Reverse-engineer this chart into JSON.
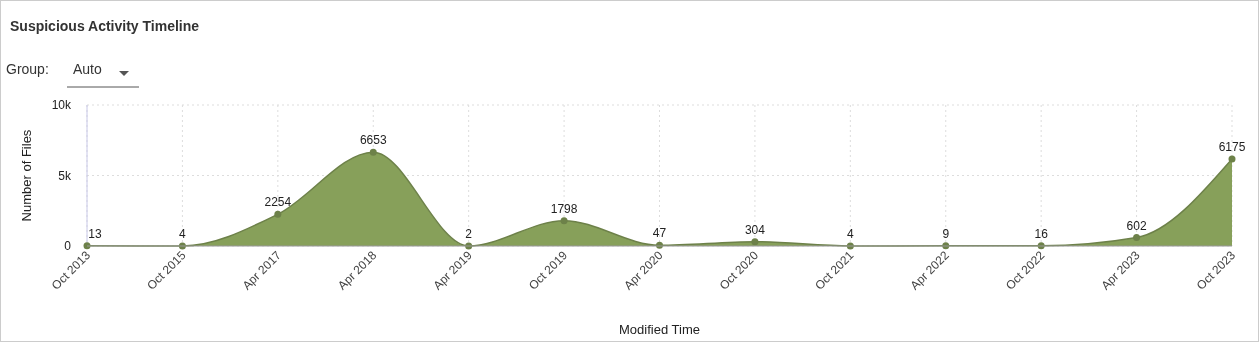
{
  "chart_data": {
    "type": "area",
    "title": "Suspicious Activity Timeline",
    "xlabel": "Modified Time",
    "ylabel": "Number of Files",
    "annotations": [
      "Group:",
      "Auto"
    ],
    "categories": [
      "Oct 2013",
      "Oct 2015",
      "Apr 2017",
      "Apr 2018",
      "Apr 2019",
      "Oct 2019",
      "Apr 2020",
      "Oct 2020",
      "Oct 2021",
      "Apr 2022",
      "Oct 2022",
      "Apr 2023",
      "Oct 2023"
    ],
    "series": [
      {
        "color": "#87a05a",
        "values": [
          13,
          4,
          2254,
          6653,
          2,
          1798,
          47,
          304,
          4,
          9,
          16,
          602,
          6175
        ]
      }
    ],
    "ylim": [
      0,
      10000
    ],
    "yticks": [
      0,
      {
        "value": 5000,
        "label": "5k"
      },
      {
        "value": 10000,
        "label": "10k"
      }
    ],
    "grid": true,
    "marker": "circle",
    "data_labels": true
  }
}
